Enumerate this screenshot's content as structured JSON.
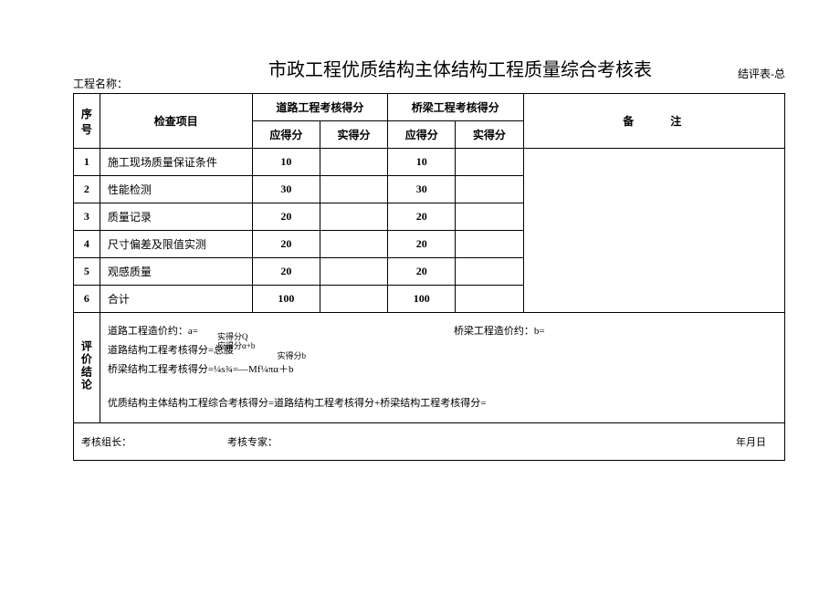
{
  "title": "市政工程优质结构主体结构工程质量综合考核表",
  "top_right": "结评表-总",
  "project_label": "工程名称：",
  "header": {
    "seq": "序号",
    "item": "检查项目",
    "road": "道路工程考核得分",
    "bridge": "桥梁工程考核得分",
    "remark": "备注",
    "should": "应得分",
    "actual": "实得分"
  },
  "rows": [
    {
      "n": "1",
      "item": "施工现场质量保证条件",
      "road_should": "10",
      "road_actual": "",
      "bridge_should": "10",
      "bridge_actual": ""
    },
    {
      "n": "2",
      "item": "性能检测",
      "road_should": "30",
      "road_actual": "",
      "bridge_should": "30",
      "bridge_actual": ""
    },
    {
      "n": "3",
      "item": "质量记录",
      "road_should": "20",
      "road_actual": "",
      "bridge_should": "20",
      "bridge_actual": ""
    },
    {
      "n": "4",
      "item": "尺寸偏差及限值实测",
      "road_should": "20",
      "road_actual": "",
      "bridge_should": "20",
      "bridge_actual": ""
    },
    {
      "n": "5",
      "item": "观感质量",
      "road_should": "20",
      "road_actual": "",
      "bridge_should": "20",
      "bridge_actual": ""
    },
    {
      "n": "6",
      "item": "合计",
      "road_should": "100",
      "road_actual": "",
      "bridge_should": "100",
      "bridge_actual": ""
    }
  ],
  "conclusion": {
    "vert_label": "评价结论",
    "road_cost": "道路工程造价约：a=",
    "bridge_cost": "桥梁工程造价约：b=",
    "road_formula_base": "道路结构工程考核得分=总腰",
    "road_formula_stack1": "实得分Q",
    "road_formula_stack2": "应得分α+b",
    "bridge_formula_base": "桥梁结构工程考核得分=¼s¾=—Mf¼πα＋b",
    "bridge_formula_stack1": "实得分b",
    "total_formula": "优质结构主体结构工程综合考核得分=道路结构工程考核得分+桥梁结构工程考核得分="
  },
  "footer": {
    "leader": "考核组长：",
    "expert": "考核专家：",
    "date": "年月日"
  }
}
